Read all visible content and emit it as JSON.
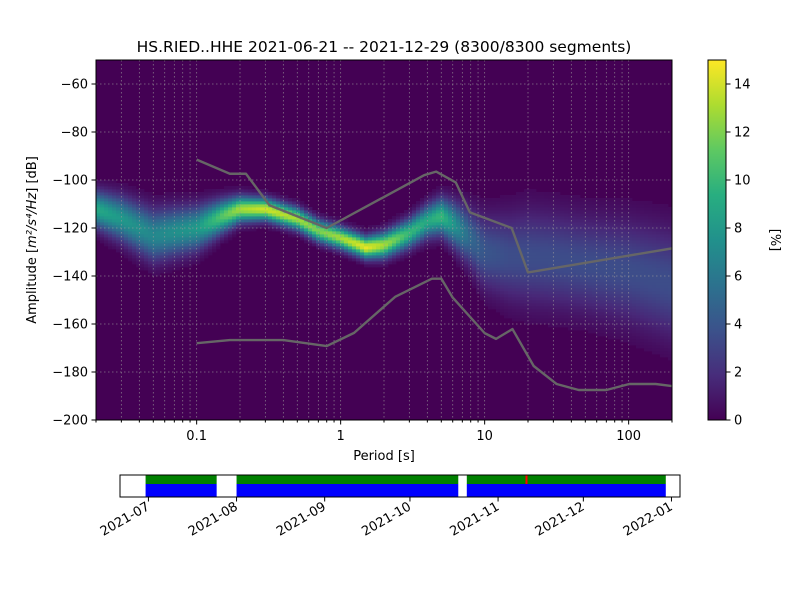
{
  "chart_data": [
    {
      "type": "heatmap",
      "subtype": "probabilistic_power_spectral_density",
      "title": "HS.RIED..HHE   2021-06-21 -- 2021-12-29  (8300/8300 segments)",
      "xlabel": "Period [s]",
      "ylabel_prefix": "Amplitude [",
      "ylabel_math": "m²/s⁴/Hz",
      "ylabel_suffix": "] [dB]",
      "x_scale": "log",
      "xlim": [
        0.02,
        200
      ],
      "ylim": [
        -200,
        -50
      ],
      "x_ticks": [
        0.1,
        1,
        10,
        100
      ],
      "x_tick_labels": [
        "0.1",
        "1",
        "10",
        "100"
      ],
      "y_ticks": [
        -200,
        -180,
        -160,
        -140,
        -120,
        -100,
        -80,
        -60
      ],
      "y_tick_labels": [
        "−200",
        "−180",
        "−160",
        "−140",
        "−120",
        "−100",
        "−80",
        "−60"
      ],
      "grid": true,
      "colormap": "viridis",
      "colorbar": {
        "label": "[%]",
        "range": [
          0,
          15
        ],
        "ticks": [
          0,
          2,
          4,
          6,
          8,
          10,
          12,
          14
        ],
        "tick_labels": [
          "0",
          "2",
          "4",
          "6",
          "8",
          "10",
          "12",
          "14"
        ]
      },
      "density_ridge": {
        "period": [
          0.02,
          0.03,
          0.05,
          0.1,
          0.15,
          0.2,
          0.3,
          0.5,
          0.7,
          1.0,
          1.5,
          2.0,
          3.0,
          4.0,
          5.0,
          6.0,
          8.0,
          10,
          15,
          20,
          30,
          50,
          100,
          200
        ],
        "center_db": [
          -112,
          -116,
          -123,
          -120,
          -115,
          -112,
          -112,
          -116,
          -121,
          -124,
          -128,
          -127,
          -122,
          -117,
          -115,
          -118,
          -124,
          -130,
          -132,
          -132,
          -133,
          -135,
          -138,
          -143
        ],
        "spread_db": [
          5,
          6,
          7,
          6,
          4.5,
          3.5,
          3,
          3,
          3,
          3,
          3,
          3.5,
          4,
          4.5,
          5,
          6,
          8,
          10,
          12,
          13,
          13,
          13,
          14,
          15
        ],
        "peak_percent": [
          9,
          8,
          7,
          8,
          11,
          13,
          14,
          13,
          12,
          13,
          14.5,
          13,
          10,
          9,
          10,
          8,
          5,
          4,
          3.5,
          3.5,
          3.5,
          3.5,
          3.5,
          3.5
        ]
      },
      "noise_models": [
        {
          "period": [
            0.1,
            0.17,
            0.22,
            0.32,
            0.8,
            3.8,
            4.6,
            6.3,
            7.9,
            15.4,
            20,
            354.8
          ],
          "db": [
            -91.5,
            -97.4,
            -97.4,
            -110.5,
            -120.0,
            -98.0,
            -96.5,
            -101.0,
            -113.5,
            -120.0,
            -138.5,
            -126.0
          ]
        },
        {
          "period": [
            0.1,
            0.17,
            0.4,
            0.8,
            1.24,
            2.4,
            4.3,
            5.0,
            6.0,
            10.0,
            12.0,
            15.6,
            21.9,
            31.6,
            45,
            70,
            101,
            154,
            328
          ],
          "db": [
            -168.0,
            -166.7,
            -166.7,
            -169.2,
            -163.7,
            -148.6,
            -141.1,
            -141.1,
            -149.0,
            -163.8,
            -166.2,
            -162.1,
            -177.5,
            -185.0,
            -187.5,
            -187.5,
            -185.0,
            -185.0,
            -187.5
          ]
        }
      ]
    },
    {
      "type": "timeline",
      "subtype": "data_coverage",
      "x_tick_labels": [
        "2021-07",
        "2021-08",
        "2021-09",
        "2021-10",
        "2021-11",
        "2021-12",
        "2022-01"
      ],
      "x_tick_dates": [
        "2021-07-01",
        "2021-08-01",
        "2021-09-01",
        "2021-10-01",
        "2021-11-01",
        "2021-12-01",
        "2022-01-01"
      ],
      "xlim": [
        "2021-06-21",
        "2022-01-04"
      ],
      "colors": {
        "covered": "#0000ff",
        "processed": "#008000",
        "gap_marker": "#ff0000"
      },
      "segments": [
        {
          "start": "2021-06-30",
          "end": "2021-07-25"
        },
        {
          "start": "2021-08-01",
          "end": "2021-10-18"
        },
        {
          "start": "2021-10-21",
          "end": "2021-12-30"
        }
      ],
      "markers": [
        "2021-11-11"
      ]
    }
  ]
}
